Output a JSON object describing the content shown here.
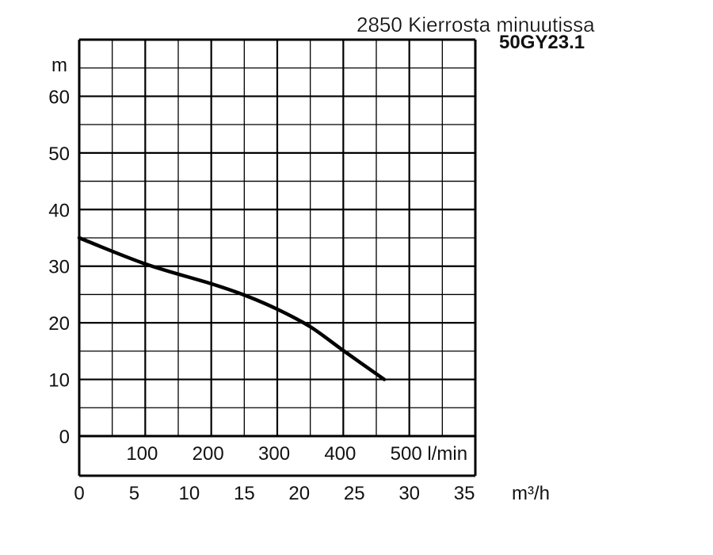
{
  "chart_data": {
    "type": "line",
    "title": "2850 Kierrosta minuutissa",
    "subtitle": "50GY23.1",
    "ylabel": "m",
    "xlabel_primary": "l/min",
    "xlabel_secondary": "m³/h",
    "ylim": [
      0,
      70
    ],
    "xlim_lmin": [
      0,
      600
    ],
    "xlim_m3h": [
      0,
      36
    ],
    "grid": true,
    "y_ticks": [
      0,
      10,
      20,
      30,
      40,
      50,
      60
    ],
    "x_ticks_lmin": [
      "100",
      "200",
      "300",
      "400",
      "500 l/min"
    ],
    "x_tick_values_lmin": [
      100,
      200,
      300,
      400,
      500
    ],
    "x_ticks_m3h": [
      0,
      5,
      10,
      15,
      20,
      25,
      30,
      35
    ],
    "series": [
      {
        "name": "50GY23.1",
        "x_lmin": [
          0,
          100,
          200,
          250,
          300,
          350,
          400,
          462
        ],
        "y_m": [
          35,
          30.4,
          26.9,
          24.9,
          22.4,
          19.3,
          15.1,
          10
        ]
      }
    ]
  }
}
